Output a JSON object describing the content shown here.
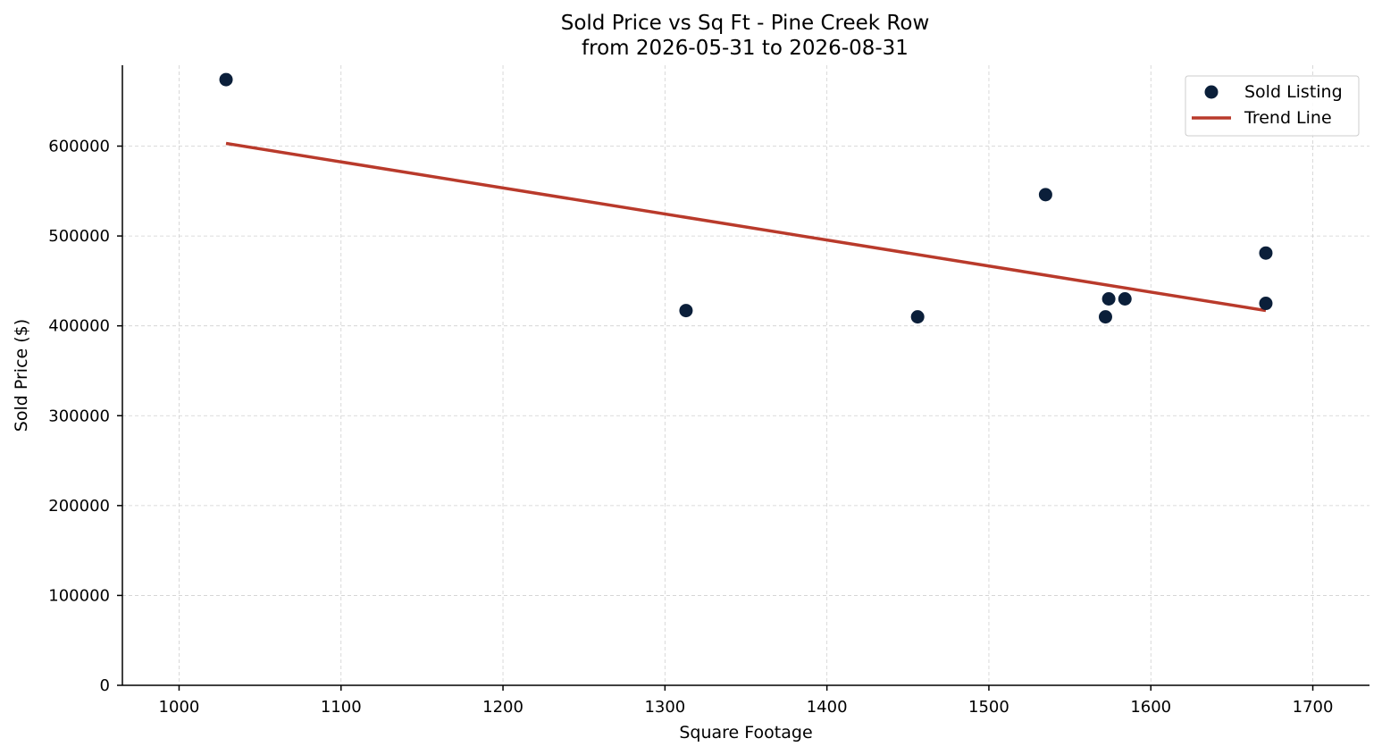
{
  "chart_data": {
    "type": "scatter",
    "title_line1": "Sold Price vs Sq Ft - Pine Creek Row",
    "title_line2": "from 2026-05-31 to 2026-08-31",
    "xlabel": "Square Footage",
    "ylabel": "Sold Price ($)",
    "xlim": [
      965,
      1735
    ],
    "ylim": [
      0,
      690000
    ],
    "x_ticks": [
      1000,
      1100,
      1200,
      1300,
      1400,
      1500,
      1600,
      1700
    ],
    "y_ticks": [
      0,
      100000,
      200000,
      300000,
      400000,
      500000,
      600000
    ],
    "grid": true,
    "legend_position": "top-right",
    "colors": {
      "points": "#0b1f3a",
      "trend": "#b93a2b"
    },
    "series": [
      {
        "name": "Sold Listing",
        "kind": "scatter",
        "points": [
          {
            "x": 1029,
            "y": 674000
          },
          {
            "x": 1313,
            "y": 417000
          },
          {
            "x": 1456,
            "y": 410000
          },
          {
            "x": 1535,
            "y": 546000
          },
          {
            "x": 1572,
            "y": 410000
          },
          {
            "x": 1574,
            "y": 430000
          },
          {
            "x": 1584,
            "y": 430000
          },
          {
            "x": 1671,
            "y": 481000
          },
          {
            "x": 1671,
            "y": 425000
          }
        ]
      },
      {
        "name": "Trend Line",
        "kind": "line",
        "points": [
          {
            "x": 1029,
            "y": 603000
          },
          {
            "x": 1671,
            "y": 417000
          }
        ]
      }
    ]
  }
}
